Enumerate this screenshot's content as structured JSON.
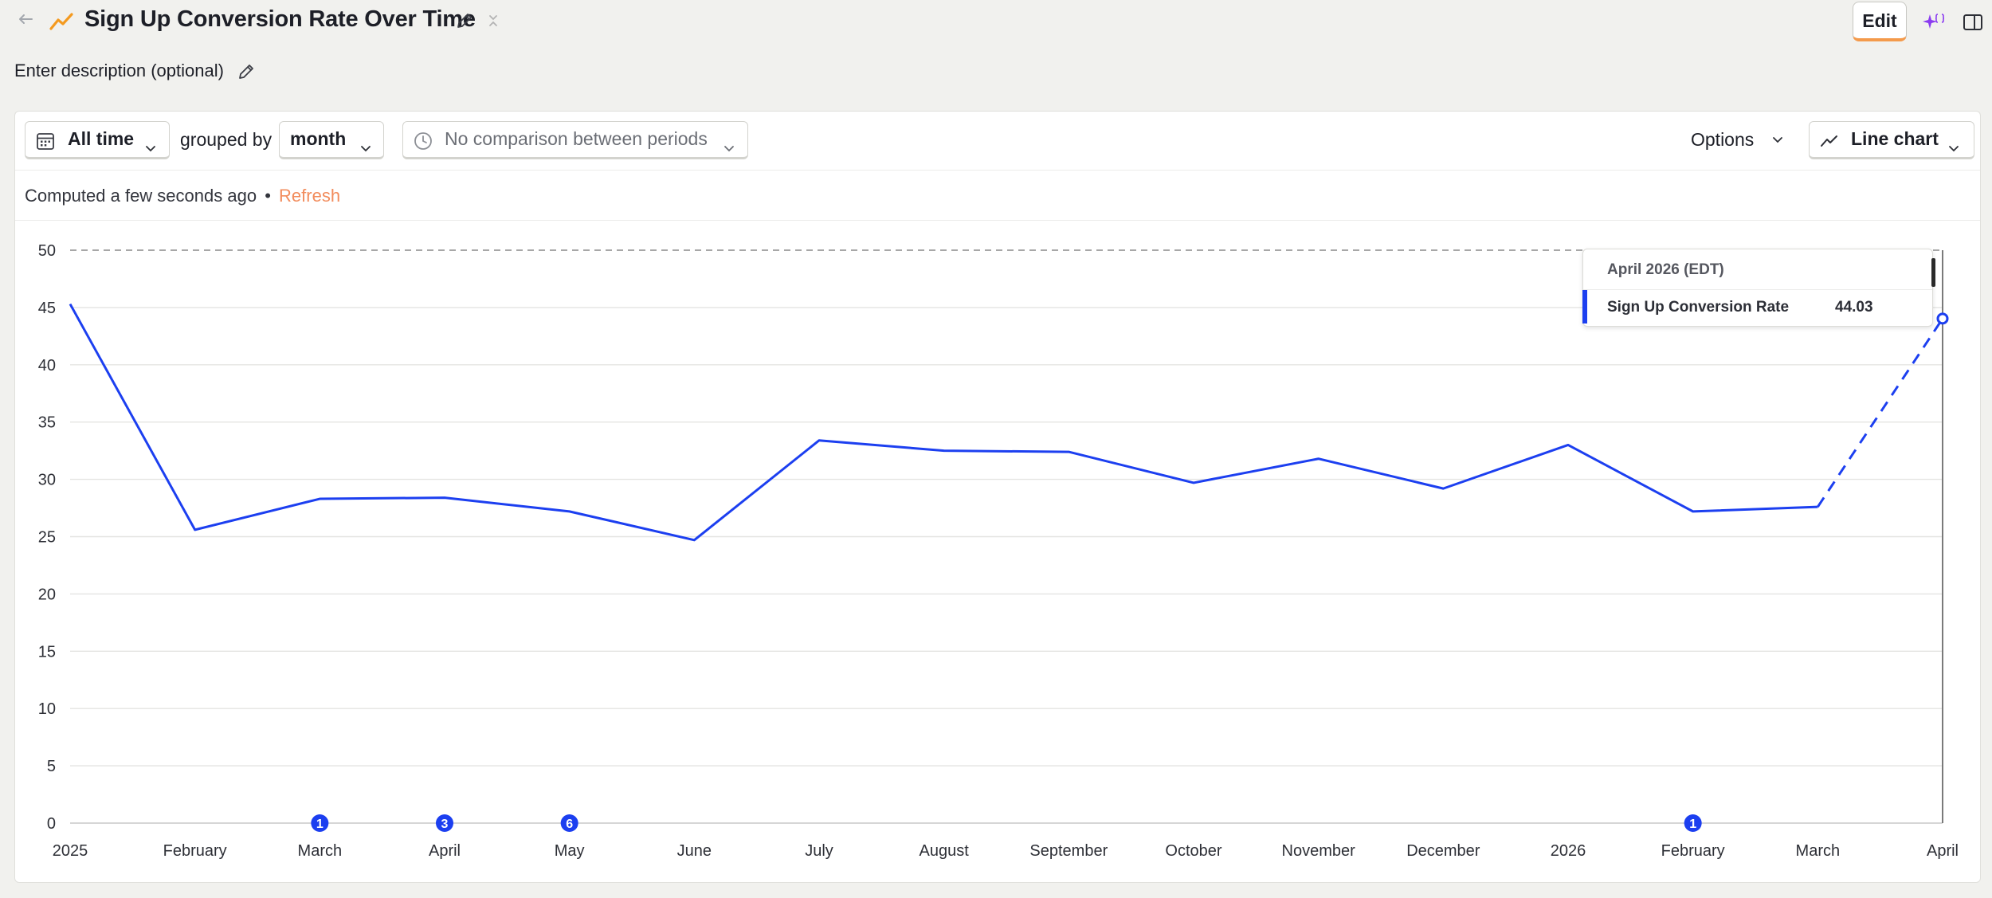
{
  "header": {
    "title": "Sign Up Conversion Rate Over Time",
    "edit_label": "Edit",
    "icons": [
      "back-arrow-icon",
      "line-chart-icon",
      "pencil-icon",
      "collapse-icon",
      "ai-sparkle-icon",
      "side-panel-icon"
    ]
  },
  "description": {
    "placeholder": "Enter description (optional)"
  },
  "filters": {
    "date_range": "All time",
    "grouped_by_label": "grouped by",
    "interval": "month",
    "comparison": "No comparison between periods",
    "options_label": "Options",
    "chart_type": "Line chart"
  },
  "status": {
    "computed": "Computed a few seconds ago",
    "separator": "•",
    "refresh": "Refresh"
  },
  "tooltip": {
    "header": "April 2026 (EDT)",
    "series": "Sign Up Conversion Rate",
    "value": "44.03"
  },
  "colors": {
    "series": "#1c3ff0",
    "accent": "#f49a4b",
    "refresh": "#f28c5c",
    "ai": "#8b3cf0"
  },
  "chart_data": {
    "type": "line",
    "categories": [
      "2025",
      "February",
      "March",
      "April",
      "May",
      "June",
      "July",
      "August",
      "September",
      "October",
      "November",
      "December",
      "2026",
      "February",
      "March",
      "April"
    ],
    "series": [
      {
        "name": "Sign Up Conversion Rate",
        "values": [
          45.3,
          25.6,
          28.3,
          28.4,
          27.2,
          24.7,
          33.4,
          32.5,
          32.4,
          29.7,
          31.8,
          29.2,
          33.0,
          27.2,
          27.6,
          44.03
        ],
        "dashed_from_index": 14
      }
    ],
    "y_ticks": [
      0,
      5,
      10,
      15,
      20,
      25,
      30,
      35,
      40,
      45,
      50
    ],
    "ylim": [
      0,
      50
    ],
    "grid": true,
    "annotations": [
      {
        "index": 2,
        "count": "1"
      },
      {
        "index": 3,
        "count": "3"
      },
      {
        "index": 4,
        "count": "6"
      },
      {
        "index": 13,
        "count": "1"
      }
    ]
  }
}
